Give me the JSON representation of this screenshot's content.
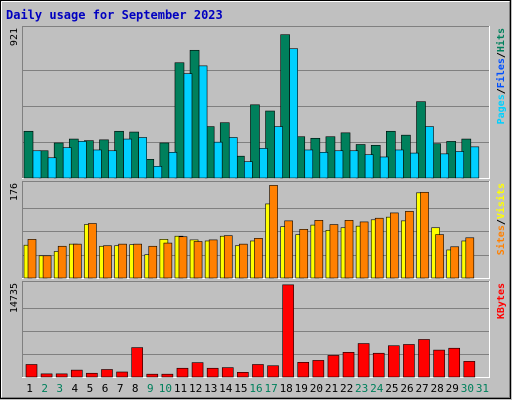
{
  "colors": {
    "title": "#0000c0",
    "pages": "#00d0ff",
    "files": "#0050ff",
    "hits": "#00805c",
    "visits": "#ffff00",
    "sites": "#ff8000",
    "kbytes": "#ff0000",
    "weekday_label": "#000000",
    "weekend_label": "#00805c"
  },
  "chart_data": {
    "type": "bar",
    "title": "Daily usage for September 2023",
    "categories": [
      "1",
      "2",
      "3",
      "4",
      "5",
      "6",
      "7",
      "8",
      "9",
      "10",
      "11",
      "12",
      "13",
      "14",
      "15",
      "16",
      "17",
      "18",
      "19",
      "20",
      "21",
      "22",
      "23",
      "24",
      "25",
      "26",
      "27",
      "28",
      "29",
      "30",
      "31"
    ],
    "weekend_days": [
      "2",
      "3",
      "9",
      "10",
      "16",
      "17",
      "23",
      "24",
      "30",
      "31"
    ],
    "panels": [
      {
        "name": "hits-files-pages",
        "ymax_label": "921",
        "ymax": 921,
        "right_label": {
          "parts": [
            "Pages",
            "/",
            "Files",
            "/",
            "Hits"
          ]
        },
        "series": [
          {
            "name": "Hits",
            "values": [
              300,
              175,
              225,
              250,
              240,
              245,
              300,
              295,
              120,
              225,
              740,
              820,
              330,
              355,
              140,
              470,
              430,
              920,
              265,
              255,
              265,
              290,
              215,
              210,
              300,
              275,
              490,
              220,
              235,
              250,
              0
            ]
          },
          {
            "name": "Files",
            "values": [
              0,
              0,
              0,
              0,
              0,
              0,
              0,
              0,
              0,
              0,
              0,
              0,
              0,
              0,
              0,
              0,
              0,
              0,
              0,
              0,
              0,
              0,
              0,
              0,
              0,
              0,
              0,
              0,
              0,
              0,
              0
            ]
          },
          {
            "name": "Pages",
            "values": [
              175,
              130,
              195,
              235,
              180,
              175,
              250,
              260,
              75,
              165,
              670,
              720,
              230,
              260,
              105,
              190,
              330,
              830,
              180,
              165,
              175,
              175,
              150,
              135,
              180,
              160,
              330,
              155,
              170,
              200,
              0
            ]
          }
        ]
      },
      {
        "name": "visits-sites",
        "ymax_label": "176",
        "ymax": 176,
        "right_label": {
          "parts": [
            "Sites",
            "/",
            "Visits"
          ]
        },
        "series": [
          {
            "name": "Visits",
            "values": [
              62,
              42,
              50,
              64,
              101,
              60,
              61,
              63,
              44,
              73,
              79,
              72,
              70,
              79,
              61,
              70,
              140,
              97,
              82,
              100,
              90,
              95,
              98,
              110,
              115,
              108,
              161,
              95,
              53,
              70,
              0
            ]
          },
          {
            "name": "Sites",
            "values": [
              73,
              42,
              60,
              64,
              103,
              61,
              64,
              64,
              60,
              66,
              78,
              69,
              72,
              80,
              64,
              75,
              175,
              108,
              92,
              109,
              101,
              109,
              106,
              113,
              123,
              126,
              162,
              82,
              59,
              76,
              0
            ]
          }
        ]
      },
      {
        "name": "kbytes",
        "ymax_label": "14735",
        "ymax": 14735,
        "right_label": {
          "parts": [
            "KBytes"
          ]
        },
        "series": [
          {
            "name": "KBytes",
            "values": [
              2000,
              500,
              500,
              1100,
              600,
              1200,
              800,
              4700,
              450,
              450,
              1400,
              2300,
              1400,
              1500,
              750,
              2000,
              1800,
              14735,
              2350,
              2650,
              3450,
              3950,
              5350,
              3800,
              5000,
              5200,
              6000,
              4300,
              4600,
              2500,
              0
            ]
          }
        ]
      }
    ]
  }
}
